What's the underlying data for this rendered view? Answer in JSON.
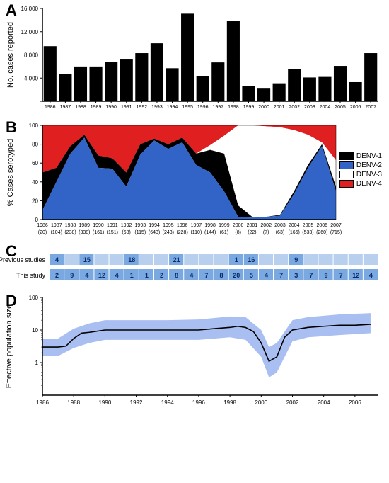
{
  "panel_labels": {
    "a": "A",
    "b": "B",
    "c": "C",
    "d": "D"
  },
  "barChart": {
    "type": "bar",
    "years": [
      "1986",
      "1987",
      "1988",
      "1989",
      "1990",
      "1991",
      "1992",
      "1993",
      "1994",
      "1995",
      "1996",
      "1997",
      "1998",
      "1999",
      "2000",
      "2001",
      "2002",
      "2003",
      "2004",
      "2005",
      "2006",
      "2007"
    ],
    "values": [
      9500,
      4700,
      6000,
      6000,
      6800,
      7200,
      8300,
      10000,
      5700,
      15100,
      4300,
      6700,
      13800,
      2600,
      2300,
      3100,
      5500,
      4100,
      4200,
      6100,
      3300,
      8300
    ],
    "ylabel": "No. cases reported",
    "ylim": [
      0,
      16000
    ],
    "yticks": [
      0,
      4000,
      8000,
      12000,
      16000
    ],
    "ytick_labels": [
      "",
      "4,000",
      "8,000",
      "12,000",
      "16,000"
    ],
    "bar_color": "#000000",
    "label_fontsize": 11,
    "tick_fontsize": 7
  },
  "areaChart": {
    "type": "area",
    "years": [
      "1986",
      "1987",
      "1988",
      "1989",
      "1990",
      "1991",
      "1992",
      "1993",
      "1994",
      "1995",
      "1996",
      "1997",
      "1998",
      "1999",
      "2000",
      "2001",
      "2002",
      "2003",
      "2004",
      "2005",
      "2006",
      "2007"
    ],
    "ns": [
      "(20)",
      "(104)",
      "(238)",
      "(338)",
      "(161)",
      "(151)",
      "(68)",
      "(115)",
      "(643)",
      "(243)",
      "(228)",
      "(110)",
      "(144)",
      "(61)",
      "(8)",
      "(22)",
      "(7)",
      "(63)",
      "(166)",
      "(533)",
      "(260)",
      "(715)"
    ],
    "ylabel": "% Cases serotyped",
    "ylim": [
      0,
      100
    ],
    "yticks": [
      0,
      20,
      40,
      60,
      80,
      100
    ],
    "series": [
      {
        "name": "DENV-2",
        "color": "#3264c8"
      },
      {
        "name": "DENV-1",
        "color": "#000000"
      },
      {
        "name": "DENV-3",
        "color": "#ffffff"
      },
      {
        "name": "DENV-4",
        "color": "#e02020"
      }
    ],
    "legend_order": [
      "DENV-1",
      "DENV-2",
      "DENV-3",
      "DENV-4"
    ],
    "denv2_top": [
      10,
      40,
      70,
      87,
      55,
      54,
      35,
      69,
      84,
      75,
      82,
      58,
      50,
      30,
      3,
      2,
      3,
      4,
      27,
      55,
      78,
      30
    ],
    "denv1_top": [
      50,
      55,
      78,
      90,
      68,
      65,
      50,
      80,
      86,
      80,
      87,
      70,
      74,
      70,
      15,
      3,
      3,
      5,
      30,
      58,
      80,
      35
    ],
    "denv3_top": [
      50,
      55,
      78,
      90,
      68,
      65,
      50,
      80,
      86,
      80,
      87,
      70,
      79,
      89,
      100,
      100,
      99,
      98,
      95,
      90,
      82,
      63
    ],
    "label_fontsize": 11,
    "tick_fontsize": 7
  },
  "tableC": {
    "row1_label": "Previous studies",
    "row2_label": "This study",
    "row1": [
      "4",
      "",
      "15",
      "",
      "",
      "18",
      "",
      "",
      "21",
      "",
      "",
      "",
      "1",
      "16",
      "",
      "",
      "9",
      "",
      "",
      "",
      "",
      ""
    ],
    "row2": [
      "2",
      "9",
      "4",
      "12",
      "4",
      "1",
      "1",
      "2",
      "8",
      "4",
      "7",
      "8",
      "20",
      "5",
      "4",
      "7",
      "3",
      "7",
      "9",
      "7",
      "12",
      "4"
    ],
    "cell_color_filled": "#7aa8e0",
    "cell_color_empty": "#b8d0ee",
    "label_fontsize": 9,
    "value_fontsize": 9
  },
  "skyline": {
    "type": "line",
    "ylabel": "Effective population size",
    "ylim_log": [
      0.1,
      100
    ],
    "yticks": [
      1,
      10,
      100
    ],
    "years": [
      1986,
      1988,
      1990,
      1992,
      1994,
      1996,
      1998,
      2000,
      2002,
      2004,
      2006
    ],
    "median": [
      [
        1986,
        3.0
      ],
      [
        1987,
        3.0
      ],
      [
        1987.5,
        3.2
      ],
      [
        1988,
        5.5
      ],
      [
        1988.5,
        8.0
      ],
      [
        1989,
        8.5
      ],
      [
        1990,
        10
      ],
      [
        1991,
        10
      ],
      [
        1992,
        10
      ],
      [
        1994,
        10
      ],
      [
        1996,
        10
      ],
      [
        1997,
        11
      ],
      [
        1998,
        12
      ],
      [
        1998.5,
        13
      ],
      [
        1999,
        12
      ],
      [
        1999.5,
        9
      ],
      [
        2000,
        4
      ],
      [
        2000.5,
        1.1
      ],
      [
        2001,
        1.5
      ],
      [
        2001.5,
        6
      ],
      [
        2002,
        10
      ],
      [
        2003,
        12
      ],
      [
        2004,
        13
      ],
      [
        2005,
        14
      ],
      [
        2006,
        14
      ],
      [
        2007,
        15
      ]
    ],
    "upper": [
      [
        1986,
        5.5
      ],
      [
        1987,
        5.5
      ],
      [
        1988,
        11
      ],
      [
        1989,
        16
      ],
      [
        1990,
        20
      ],
      [
        1992,
        20
      ],
      [
        1994,
        20
      ],
      [
        1996,
        21
      ],
      [
        1998,
        26
      ],
      [
        1999,
        25
      ],
      [
        2000,
        10
      ],
      [
        2000.5,
        3.0
      ],
      [
        2001,
        4.0
      ],
      [
        2002,
        20
      ],
      [
        2003,
        25
      ],
      [
        2005,
        30
      ],
      [
        2007,
        33
      ]
    ],
    "lower": [
      [
        1986,
        1.6
      ],
      [
        1987,
        1.6
      ],
      [
        1988,
        2.8
      ],
      [
        1989,
        4.0
      ],
      [
        1990,
        5.0
      ],
      [
        1992,
        5.0
      ],
      [
        1994,
        5.0
      ],
      [
        1996,
        5.0
      ],
      [
        1998,
        6
      ],
      [
        1999,
        5
      ],
      [
        2000,
        1.5
      ],
      [
        2000.5,
        0.35
      ],
      [
        2001,
        0.5
      ],
      [
        2002,
        4.5
      ],
      [
        2003,
        6
      ],
      [
        2005,
        7
      ],
      [
        2007,
        8
      ]
    ],
    "line_color": "#000000",
    "ci_color": "#9ab4f0",
    "label_fontsize": 11,
    "tick_fontsize": 8
  }
}
